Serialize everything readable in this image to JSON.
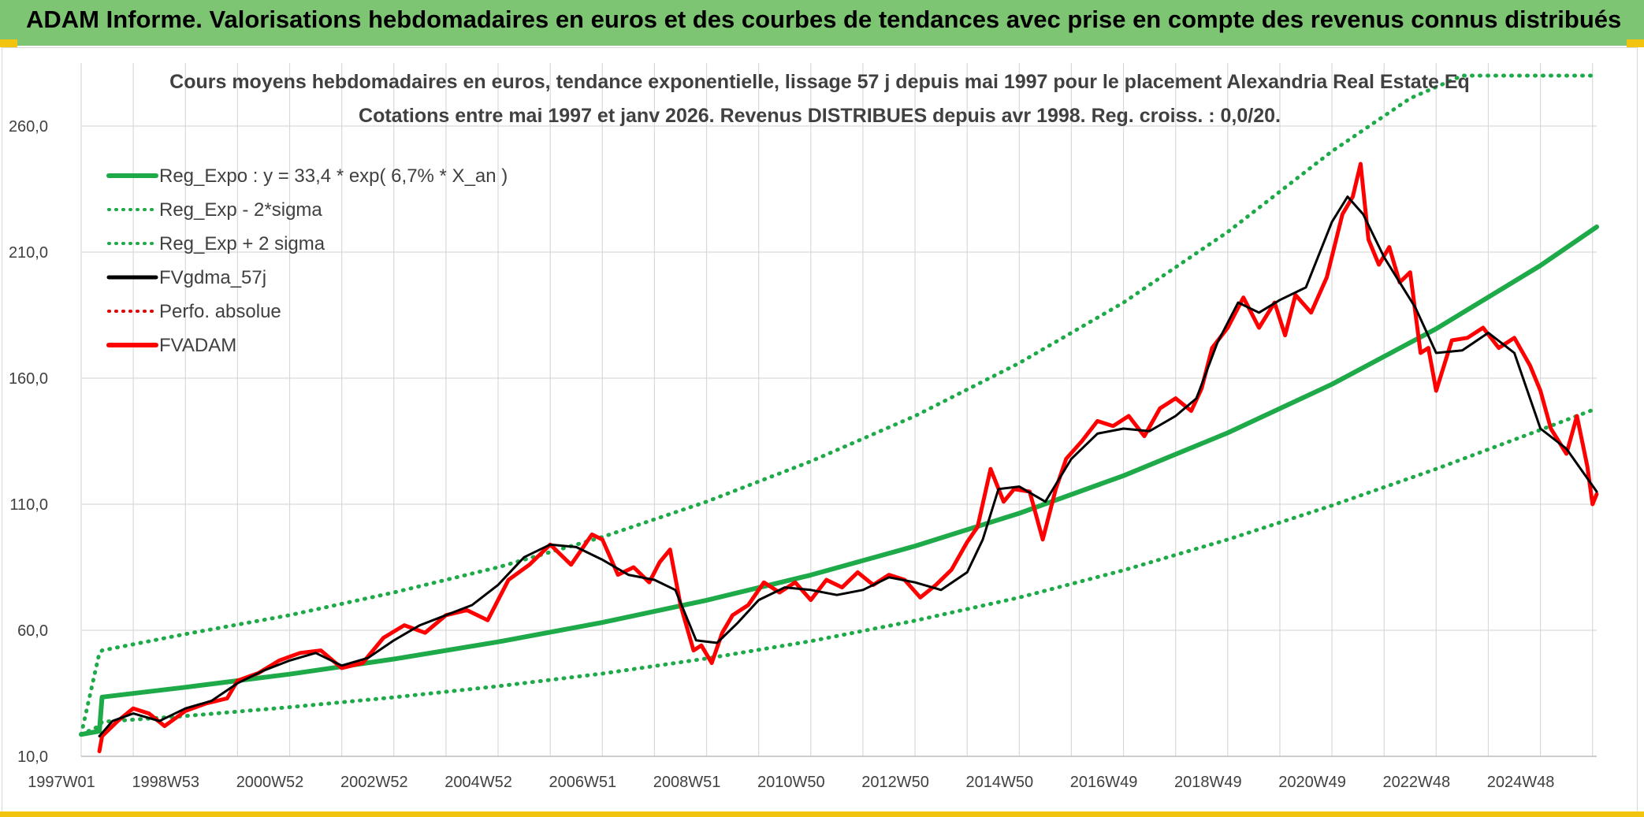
{
  "header": {
    "title": "ADAM Informe. Valorisations hebdomadaires en euros et des courbes de tendances avec prise en compte des revenus connus distribués"
  },
  "colors": {
    "banner": "#7dc473",
    "accent": "#f2c40f",
    "reg_expo": "#1faa4a",
    "fvgdma": "#000000",
    "fvadam": "#ff0000",
    "perfo": "#e00000",
    "grid": "#d9d9d9"
  },
  "chart_data": {
    "type": "line",
    "title": "Cours moyens hebdomadaires en euros, tendance exponentielle, lissage 57 j depuis mai 1997 pour le placement Alexandria Real Estate Eq",
    "subtitle": "Cotations entre mai 1997 et janv 2026. Revenus DISTRIBUES depuis avr 1998. Reg. croiss. : 0,0/20.",
    "xlabel": "",
    "ylabel": "",
    "xlim": [
      1997.0,
      2026.08
    ],
    "ylim": [
      10,
      285
    ],
    "x_tick_positions": [
      1997.0,
      1999.0,
      2001.0,
      2003.0,
      2005.0,
      2007.0,
      2009.0,
      2011.0,
      2013.0,
      2015.0,
      2017.0,
      2019.0,
      2021.0,
      2023.0,
      2025.0
    ],
    "x_tick_labels": [
      "1997W01",
      "1998W53",
      "2000W52",
      "2002W52",
      "2004W52",
      "2006W51",
      "2008W51",
      "2010W50",
      "2012W50",
      "2014W50",
      "2016W49",
      "2018W49",
      "2020W49",
      "2022W48",
      "2024W48"
    ],
    "y_ticks": [
      10,
      60,
      110,
      160,
      210,
      260
    ],
    "y_tick_labels": [
      "10,0",
      "60,0",
      "110,0",
      "160,0",
      "210,0",
      "260,0"
    ],
    "legend": {
      "placement": "top-left",
      "entries": [
        {
          "label": "Reg_Expo : y = 33,4 * exp( 6,7% *  X_an )",
          "style": "solid-thick",
          "color": "#1faa4a"
        },
        {
          "label": "Reg_Exp - 2*sigma",
          "style": "dotted",
          "color": "#1faa4a"
        },
        {
          "label": "Reg_Exp + 2 sigma",
          "style": "dotted",
          "color": "#1faa4a"
        },
        {
          "label": "FVgdma_57j",
          "style": "solid",
          "color": "#000000"
        },
        {
          "label": "Perfo. absolue",
          "style": "dotted",
          "color": "#e00000"
        },
        {
          "label": "FVADAM",
          "style": "solid-thick",
          "color": "#ff0000"
        }
      ]
    },
    "series": [
      {
        "name": "Reg_Expo",
        "x": [
          1997.0,
          1997.35,
          1997.4,
          1999.0,
          2001.0,
          2003.0,
          2005.0,
          2007.0,
          2009.0,
          2011.0,
          2013.0,
          2015.0,
          2017.0,
          2019.0,
          2021.0,
          2023.0,
          2025.0,
          2026.08
        ],
        "values": [
          18.7,
          20.0,
          33.5,
          37.4,
          42.6,
          48.6,
          55.4,
          63.1,
          71.9,
          81.9,
          93.4,
          106.4,
          121.3,
          138.3,
          157.6,
          179.6,
          204.7,
          220.0
        ]
      },
      {
        "name": "Reg_Exp - 2*sigma",
        "x": [
          1997.0,
          1997.35,
          1997.4,
          1999.0,
          2001.0,
          2003.0,
          2005.0,
          2007.0,
          2009.0,
          2011.0,
          2013.0,
          2015.0,
          2017.0,
          2019.0,
          2021.0,
          2023.0,
          2025.0,
          2026.08
        ],
        "values": [
          18.7,
          22.0,
          23.7,
          26.0,
          29.5,
          33.4,
          37.8,
          42.8,
          48.8,
          55.7,
          63.8,
          73.0,
          83.8,
          96.0,
          109.5,
          124.0,
          139.5,
          148.0
        ]
      },
      {
        "name": "Reg_Exp + 2 sigma",
        "x": [
          1997.0,
          1997.35,
          1997.4,
          1999.0,
          2001.0,
          2003.0,
          2005.0,
          2007.0,
          2009.0,
          2011.0,
          2013.0,
          2015.0,
          2017.0,
          2019.0,
          2021.0,
          2022.5,
          2023.5,
          2026.08
        ],
        "values": [
          18.7,
          51.0,
          52.0,
          58.5,
          66.0,
          75.0,
          85.0,
          97.0,
          111.0,
          127.0,
          145.0,
          166.0,
          190.0,
          218.0,
          250.0,
          271.0,
          280.0,
          280.0
        ]
      },
      {
        "name": "FVgdma_57j",
        "x": [
          1997.35,
          1997.6,
          1998.0,
          1998.5,
          1999.0,
          1999.5,
          2000.0,
          2000.5,
          2001.0,
          2001.5,
          2002.0,
          2002.5,
          2003.0,
          2003.5,
          2004.0,
          2004.5,
          2005.0,
          2005.5,
          2006.0,
          2006.5,
          2007.0,
          2007.5,
          2008.0,
          2008.4,
          2008.8,
          2009.2,
          2009.6,
          2010.0,
          2010.5,
          2011.0,
          2011.5,
          2012.0,
          2012.5,
          2013.0,
          2013.5,
          2014.0,
          2014.3,
          2014.6,
          2015.0,
          2015.5,
          2016.0,
          2016.5,
          2017.0,
          2017.5,
          2018.0,
          2018.4,
          2018.8,
          2019.2,
          2019.6,
          2020.0,
          2020.5,
          2021.0,
          2021.3,
          2021.6,
          2022.0,
          2022.3,
          2022.6,
          2023.0,
          2023.5,
          2024.0,
          2024.5,
          2025.0,
          2025.5,
          2026.08
        ],
        "values": [
          18,
          24,
          27,
          24,
          29,
          32,
          39,
          44,
          48,
          51,
          46,
          49,
          56,
          62,
          66,
          70,
          78,
          89,
          94,
          93,
          88,
          82,
          80,
          76,
          56,
          55,
          63,
          72,
          77,
          76,
          74,
          76,
          81,
          79,
          76,
          83,
          96,
          116,
          117,
          111,
          128,
          138,
          140,
          139,
          145,
          152,
          174,
          190,
          186,
          191,
          196,
          222,
          232,
          225,
          208,
          198,
          188,
          170,
          171,
          178,
          170,
          140,
          132,
          115
        ]
      },
      {
        "name": "FVADAM",
        "x": [
          1997.35,
          1997.4,
          1997.7,
          1998.0,
          1998.3,
          1998.6,
          1999.0,
          1999.4,
          1999.8,
          2000.0,
          2000.4,
          2000.8,
          2001.2,
          2001.6,
          2002.0,
          2002.4,
          2002.8,
          2003.2,
          2003.6,
          2004.0,
          2004.4,
          2004.8,
          2005.2,
          2005.6,
          2006.0,
          2006.4,
          2006.8,
          2007.0,
          2007.3,
          2007.6,
          2007.9,
          2008.1,
          2008.3,
          2008.5,
          2008.75,
          2008.9,
          2009.1,
          2009.3,
          2009.5,
          2009.8,
          2010.1,
          2010.4,
          2010.7,
          2011.0,
          2011.3,
          2011.6,
          2011.9,
          2012.2,
          2012.5,
          2012.8,
          2013.1,
          2013.4,
          2013.7,
          2014.0,
          2014.2,
          2014.45,
          2014.7,
          2014.9,
          2015.2,
          2015.45,
          2015.7,
          2015.9,
          2016.2,
          2016.5,
          2016.8,
          2017.1,
          2017.4,
          2017.7,
          2018.0,
          2018.3,
          2018.5,
          2018.7,
          2019.0,
          2019.3,
          2019.6,
          2019.9,
          2020.1,
          2020.3,
          2020.6,
          2020.9,
          2021.2,
          2021.4,
          2021.55,
          2021.7,
          2021.9,
          2022.1,
          2022.3,
          2022.5,
          2022.7,
          2022.85,
          2023.0,
          2023.3,
          2023.6,
          2023.9,
          2024.2,
          2024.5,
          2024.8,
          2025.0,
          2025.2,
          2025.5,
          2025.7,
          2025.9,
          2026.0,
          2026.08
        ],
        "values": [
          12,
          18,
          24,
          29,
          27,
          22,
          28,
          31,
          33,
          40,
          43,
          48,
          51,
          52,
          45,
          47,
          57,
          62,
          59,
          66,
          68,
          64,
          80,
          86,
          94,
          86,
          98,
          96,
          82,
          85,
          79,
          87,
          92,
          70,
          52,
          54,
          47,
          59,
          66,
          70,
          79,
          75,
          79,
          72,
          80,
          77,
          83,
          78,
          82,
          80,
          73,
          78,
          84,
          95,
          101,
          124,
          111,
          116,
          115,
          96,
          116,
          128,
          135,
          143,
          141,
          145,
          137,
          148,
          152,
          147,
          156,
          172,
          180,
          192,
          180,
          190,
          177,
          193,
          186,
          200,
          225,
          232,
          245,
          215,
          205,
          212,
          198,
          202,
          170,
          172,
          155,
          175,
          176,
          180,
          172,
          176,
          165,
          155,
          140,
          130,
          145,
          125,
          110,
          114
        ]
      }
    ]
  }
}
